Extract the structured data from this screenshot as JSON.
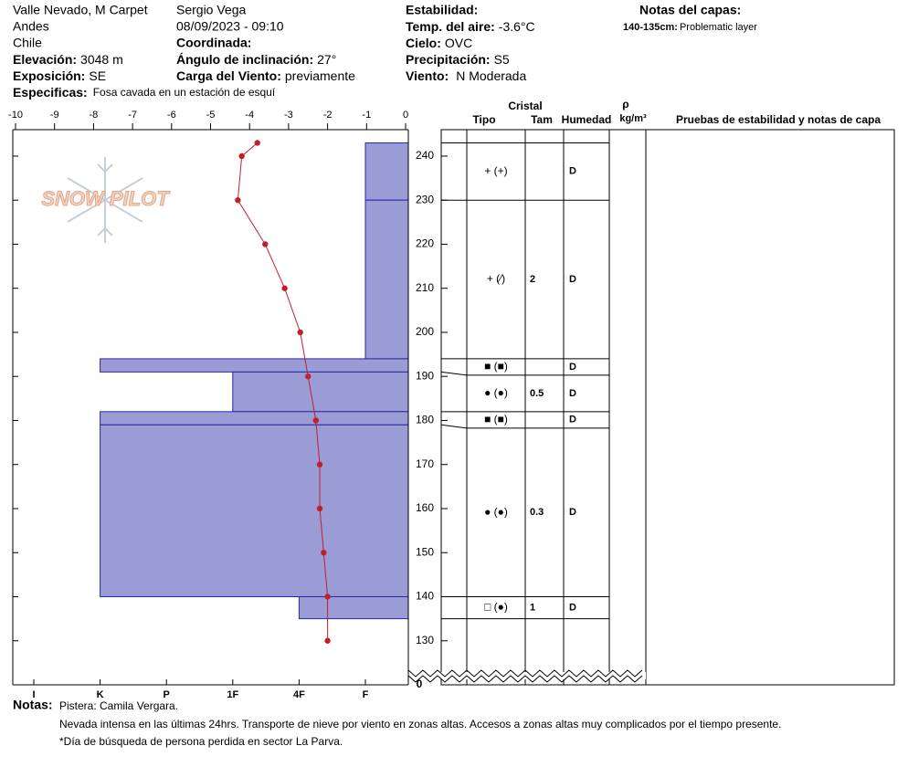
{
  "header": {
    "location": "Valle Nevado, M Carpet",
    "range": "Andes",
    "country": "Chile",
    "elevation_label": "Elevación:",
    "elevation": "3048 m",
    "aspect_label": "Exposición:",
    "aspect": "SE",
    "specifics_label": "Especificas:",
    "specifics": "Fosa cavada en un estación de esquí",
    "observer": "Sergio Vega",
    "datetime": "08/09/2023 - 09:10",
    "coord_label": "Coordinada:",
    "slope_label": "Ángulo de inclinación:",
    "slope": "27°",
    "wind_load_label": "Carga del Viento:",
    "wind_load": "previamente",
    "stability_label": "Estabilidad:",
    "air_temp_label": "Temp. del aire:",
    "air_temp": "-3.6°C",
    "sky_label": "Cielo:",
    "sky": "OVC",
    "precip_label": "Precipitación:",
    "precip": "S5",
    "wind_label": "Viento:",
    "wind": "N Moderada",
    "layer_notes_label": "Notas del capas:",
    "layer_note_range": "140-135cm:",
    "layer_note": "Problematic layer"
  },
  "chart_data": {
    "type": "snow_profile",
    "logo": "SNOW PILOT",
    "xlim": [
      -10,
      0
    ],
    "xticks": [
      -10,
      -9,
      -8,
      -7,
      -6,
      -5,
      -4,
      -3,
      -2,
      -1,
      0
    ],
    "ylim": [
      120,
      246
    ],
    "yticks": [
      130,
      140,
      150,
      160,
      170,
      180,
      190,
      200,
      210,
      220,
      230,
      240
    ],
    "ground_label": 0,
    "hardness_scale": [
      "I",
      "K",
      "P",
      "1F",
      "4F",
      "F"
    ],
    "layer_color": "#9b9bd6",
    "temperature": {
      "color": "#c0202a",
      "heights": [
        243,
        240,
        230,
        220,
        210,
        200,
        190,
        180,
        170,
        160,
        150,
        140,
        130
      ],
      "values": [
        -3.8,
        -4.2,
        -4.3,
        -3.6,
        -3.1,
        -2.7,
        -2.5,
        -2.3,
        -2.2,
        -2.2,
        -2.1,
        -2.0,
        -2.0
      ]
    },
    "columns": {
      "crystal": "Cristal",
      "type": "Tipo",
      "size": "Tam",
      "moisture": "Humedad",
      "density": "ρ",
      "density_unit": "kg/m³",
      "tests": "Pruebas de estabilidad y notas de capa"
    },
    "layers": [
      {
        "top": 243,
        "bottom": 230,
        "hardness": "F",
        "grain": "+ (+)",
        "moisture": "D"
      },
      {
        "top": 230,
        "bottom": 194,
        "hardness": "F",
        "grain": "+ (⁄)",
        "size": "2",
        "moisture": "D"
      },
      {
        "top": 194,
        "bottom": 191,
        "hardness": "K",
        "grain": "■ (■)",
        "moisture": "D"
      },
      {
        "top": 191,
        "bottom": 182,
        "hardness": "1F",
        "grain": "● (●)",
        "size": "0.5",
        "moisture": "D"
      },
      {
        "top": 182,
        "bottom": 179,
        "hardness": "K",
        "grain": "■ (■)",
        "moisture": "D"
      },
      {
        "top": 179,
        "bottom": 140,
        "hardness": "K",
        "grain": "● (●)",
        "size": "0.3",
        "moisture": "D"
      },
      {
        "top": 140,
        "bottom": 135,
        "hardness": "4F",
        "grain": "□ (●)",
        "size": "1",
        "moisture": "D"
      }
    ]
  },
  "notes": {
    "label": "Notas:",
    "lines": [
      "Pistera: Camila Vergara.",
      "Nevada intensa en las últimas 24hrs. Transporte de nieve por viento en zonas altas. Accesos a zonas altas muy complicados por el tiempo presente.",
      "*Día de búsqueda de persona perdida en sector La Parva."
    ]
  }
}
